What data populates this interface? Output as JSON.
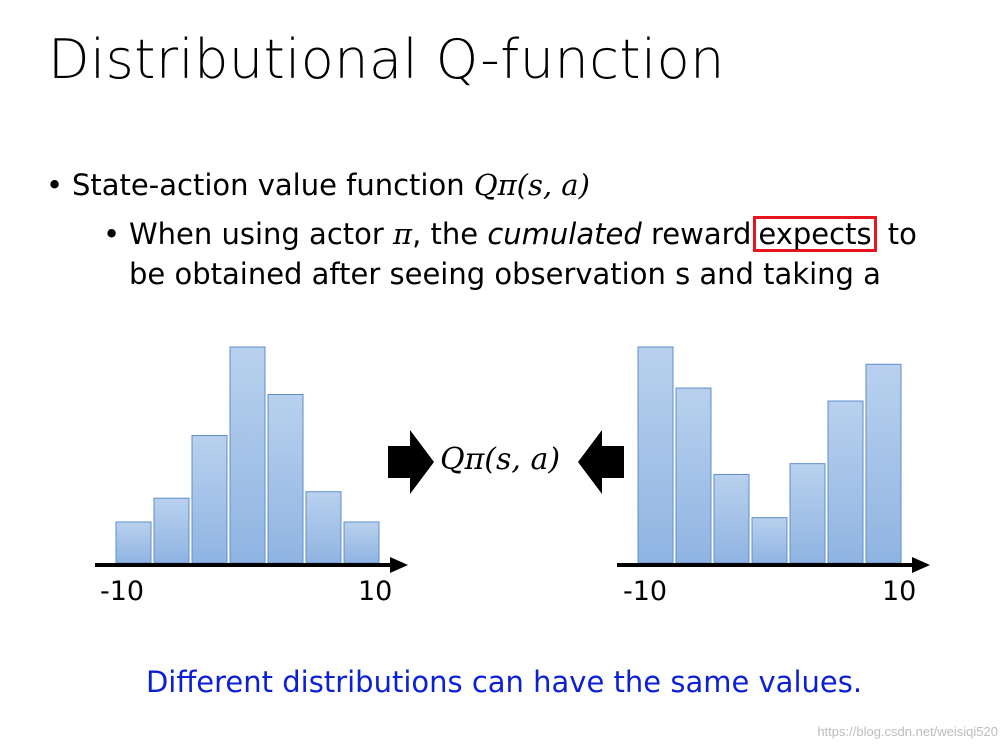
{
  "slide": {
    "title": "Distributional Q-function",
    "bullet1_text": "State-action value function ",
    "bullet1_math": "Qπ(s, a)",
    "bullet2_part1": "When using actor ",
    "bullet2_pi": "π",
    "bullet2_part2": ", the ",
    "bullet2_italic": "cumulated",
    "bullet2_part3": " reward",
    "bullet2_boxed": "expects",
    "bullet2_part4": " to",
    "bullet2_line2": "be obtained after seeing observation s and taking a",
    "center_label": "Qπ(s, a)",
    "footer": "Different distributions can have the same values.",
    "watermark": "https://blog.csdn.net/weisiqi520"
  },
  "chart_data": [
    {
      "type": "bar",
      "x_ticks": [
        "-10",
        "10"
      ],
      "values": [
        0.19,
        0.3,
        0.59,
        1.0,
        0.78,
        0.33,
        0.19
      ],
      "bar_color": "#a7c4e8"
    },
    {
      "type": "bar",
      "x_ticks": [
        "-10",
        "10"
      ],
      "values": [
        1.0,
        0.81,
        0.41,
        0.21,
        0.46,
        0.75,
        0.92
      ],
      "bar_color": "#a7c4e8"
    }
  ],
  "colors": {
    "highlight_box": "#e8141e",
    "footer_text": "#0b1fd6",
    "arrow": "#000000"
  }
}
